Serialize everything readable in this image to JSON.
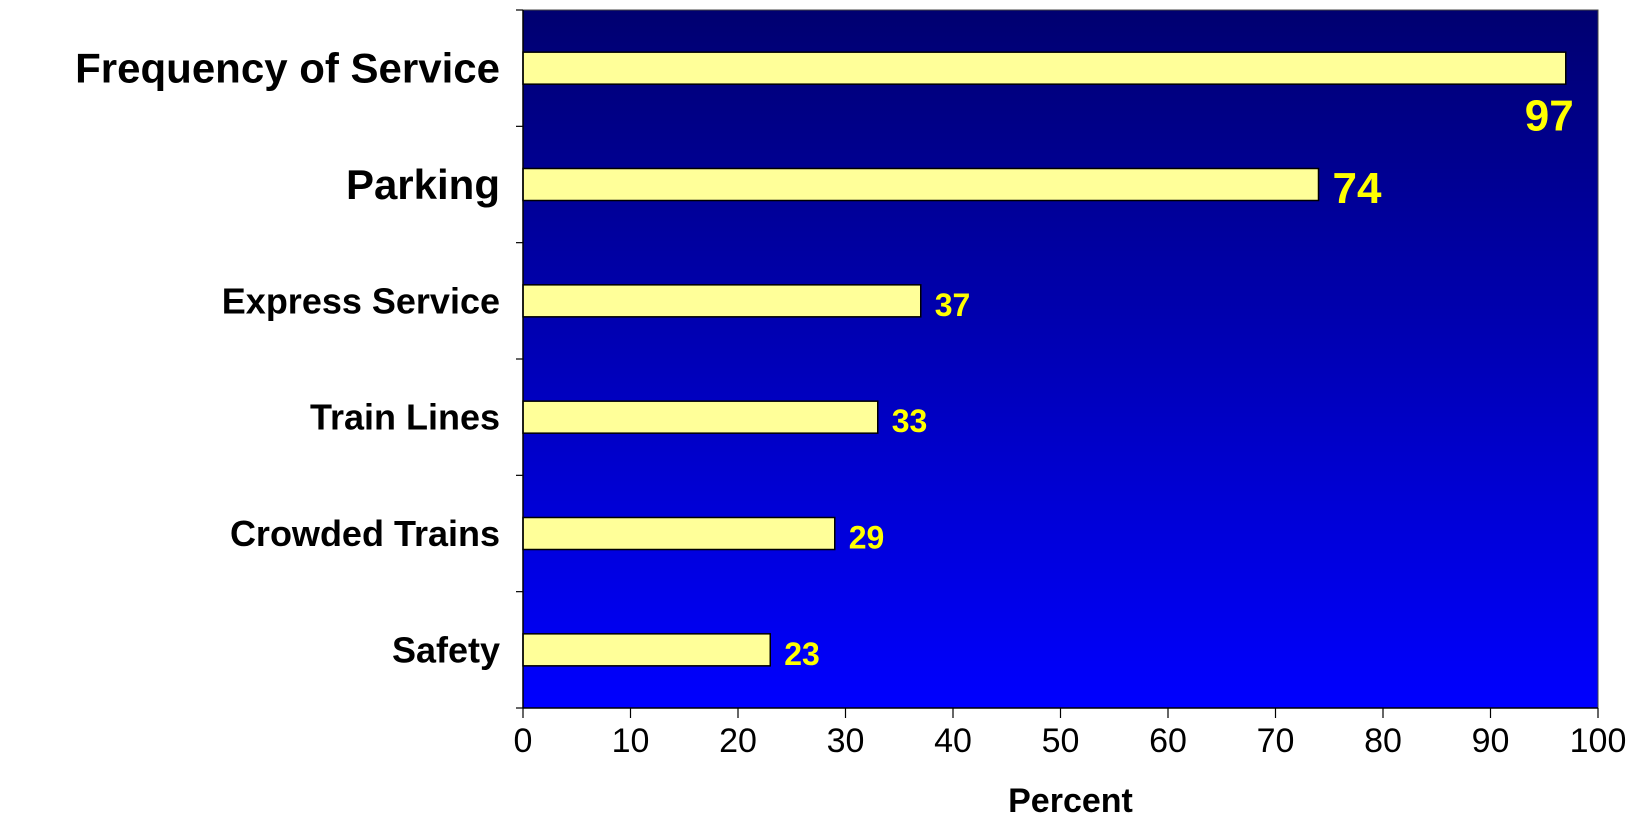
{
  "chart_data": {
    "type": "bar",
    "orientation": "horizontal",
    "categories": [
      "Frequency of Service",
      "Parking",
      "Express Service",
      "Train Lines",
      "Crowded Trains",
      "Safety"
    ],
    "values": [
      97,
      74,
      37,
      33,
      29,
      23
    ],
    "value_labels": [
      "97",
      "74",
      "37",
      "33",
      "29",
      "23"
    ],
    "xlabel": "Percent",
    "xlim": [
      0,
      100
    ],
    "x_ticks": [
      0,
      10,
      20,
      30,
      40,
      50,
      60,
      70,
      80,
      90,
      100
    ],
    "x_tick_labels": [
      "0",
      "10",
      "20",
      "30",
      "40",
      "50",
      "60",
      "70",
      "80",
      "90",
      "100"
    ],
    "grid": false,
    "legend": "none",
    "colors": {
      "bar_fill": "#ffff99",
      "bar_stroke": "#000000",
      "plot_bg_top": "#000070",
      "plot_bg_bottom": "#0000ff",
      "data_label": "#ffff00"
    }
  }
}
